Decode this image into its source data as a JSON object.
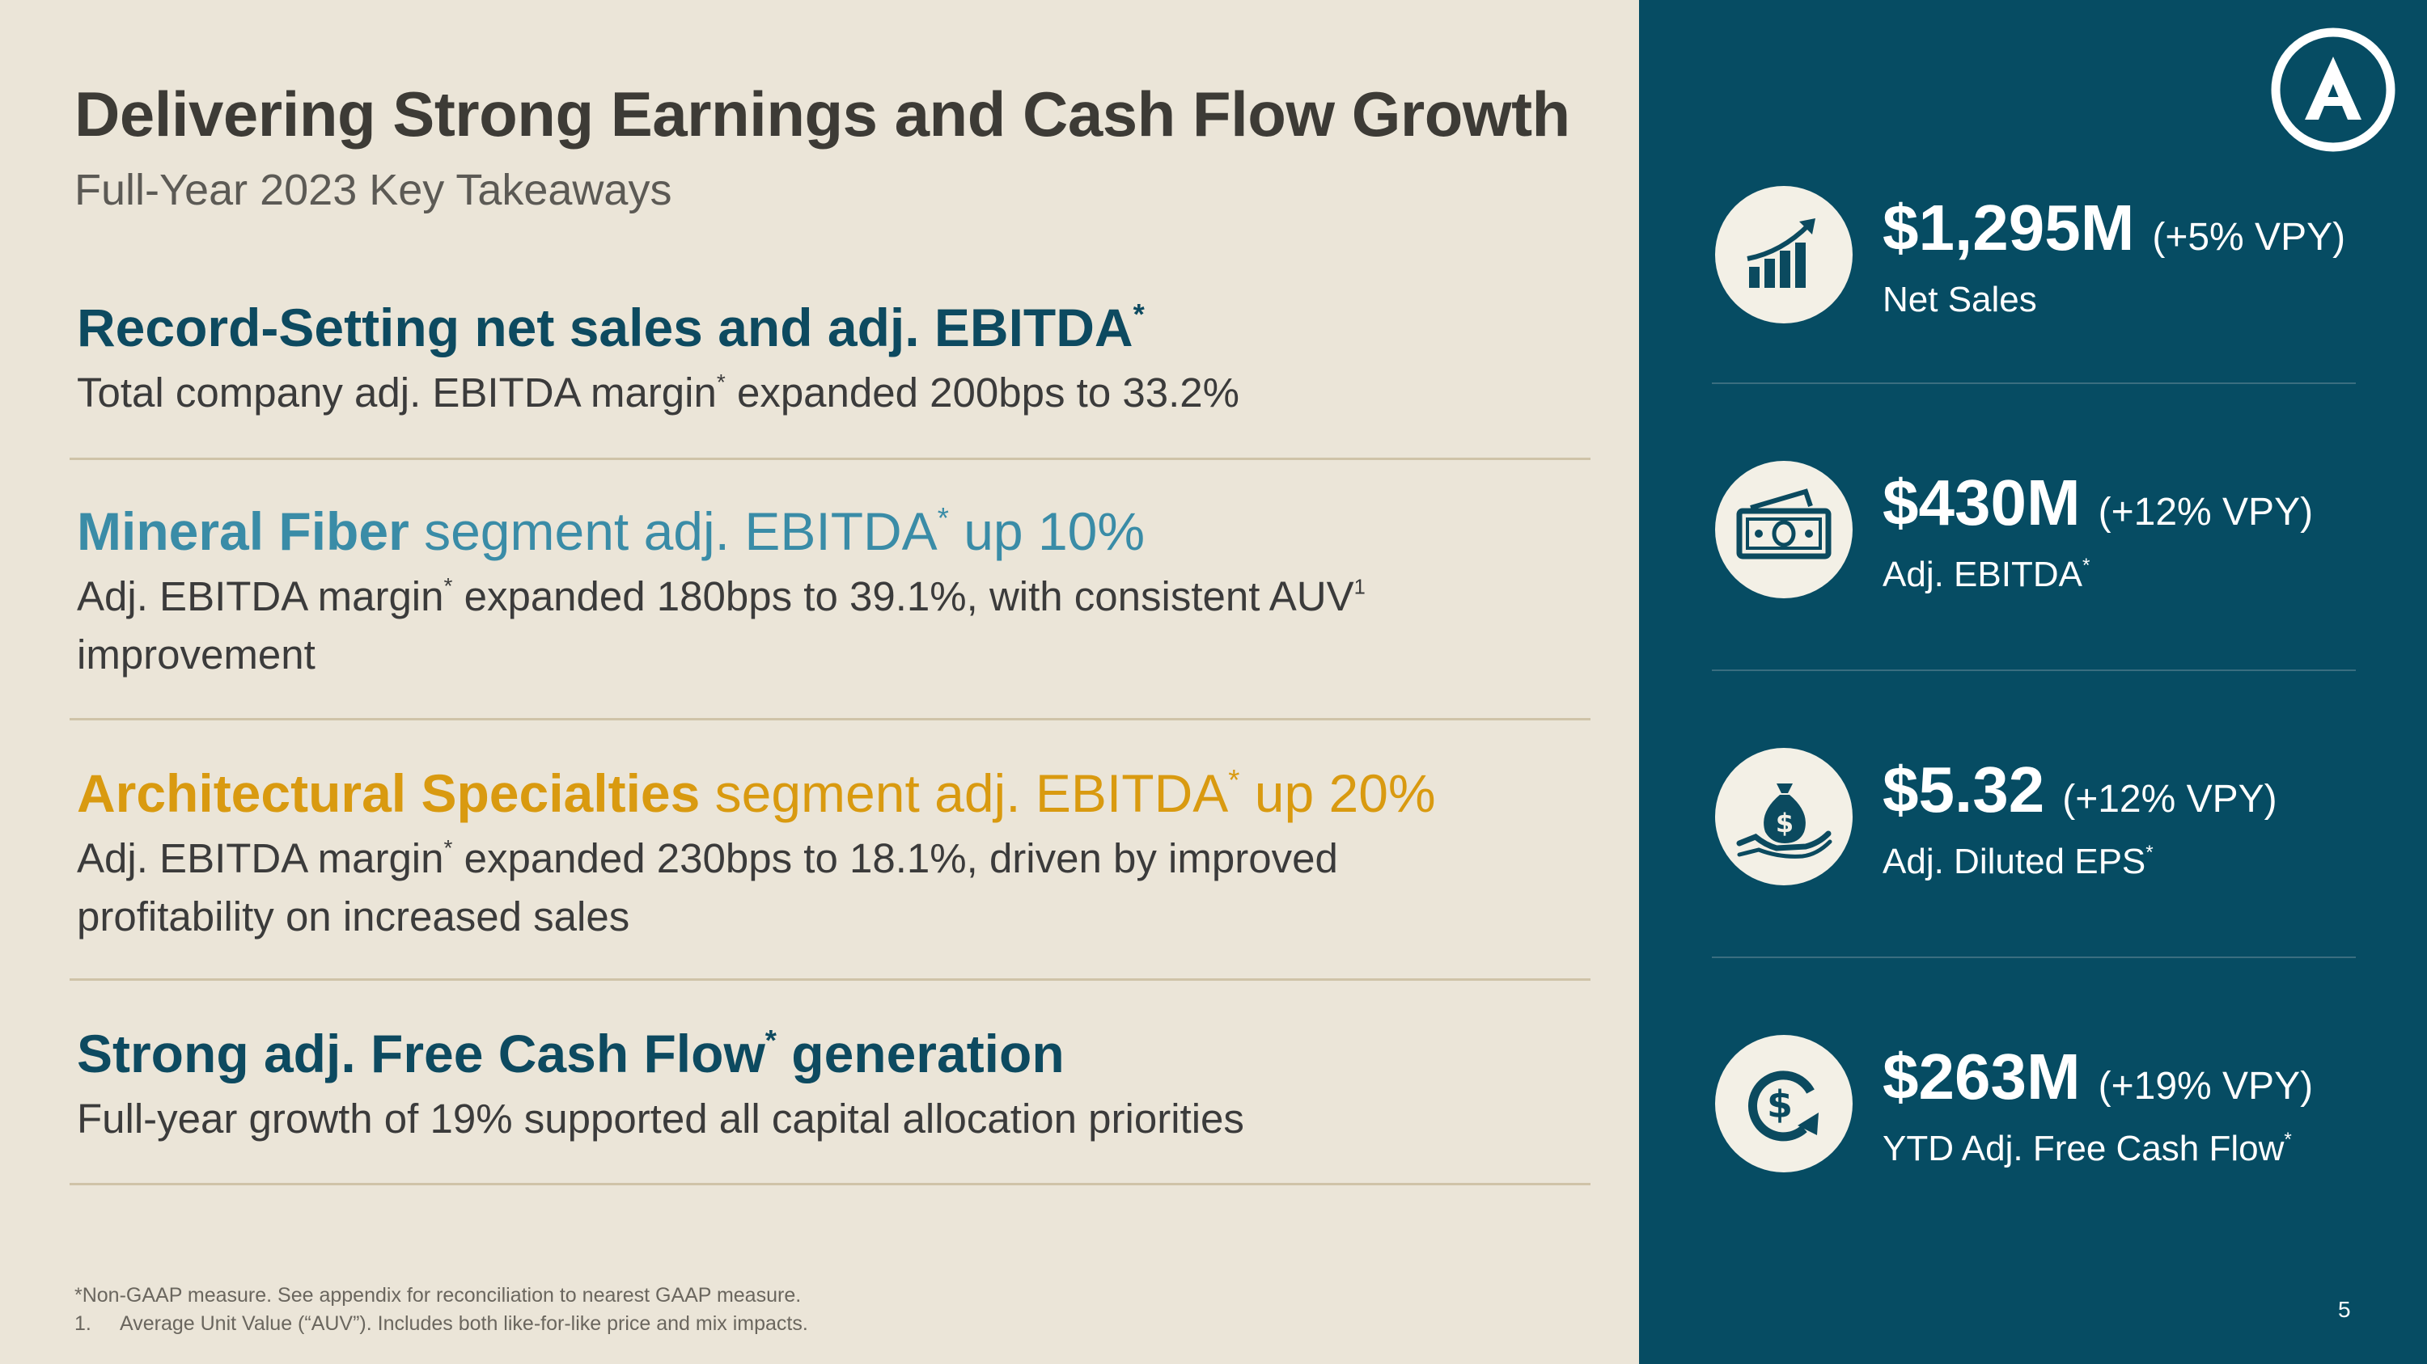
{
  "header": {
    "title": "Delivering Strong Earnings and Cash Flow Growth",
    "subtitle": "Full-Year 2023 Key Takeaways"
  },
  "sections": [
    {
      "head_bold": "Record-Setting net sales and adj. EBITDA",
      "head_sup": "*",
      "body_a": "Total company adj. EBITDA margin",
      "body_sup": "*",
      "body_b": " expanded 200bps to 33.2%"
    },
    {
      "head_bold": "Mineral Fiber",
      "head_rest": " segment adj. EBITDA",
      "head_sup": "*",
      "head_tail": " up 10%",
      "body_a": "Adj. EBITDA margin",
      "body_sup": "*",
      "body_b": " expanded 180bps to 39.1%, with consistent AUV",
      "body_sup2": "1",
      "body_c": "improvement"
    },
    {
      "head_bold": "Architectural Specialties",
      "head_rest": " segment adj. EBITDA",
      "head_sup": "*",
      "head_tail": " up 20%",
      "body_a": "Adj. EBITDA margin",
      "body_sup": "*",
      "body_b": " expanded 230bps to 18.1%, driven by improved",
      "body_c": "profitability on increased sales"
    },
    {
      "head_a": "Strong adj. Free Cash Flow",
      "head_sup": "*",
      "head_tail": " generation",
      "body_a": "Full-year growth of 19% supported all capital allocation priorities"
    }
  ],
  "footnotes": {
    "line1": "*Non-GAAP measure. See appendix for reconciliation to nearest GAAP measure.",
    "line2_num": "1.",
    "line2_text": "Average Unit Value (“AUV”). Includes both like-for-like price and mix impacts."
  },
  "stats": [
    {
      "icon": "growth-chart-icon",
      "value": "$1,295M",
      "change": "(+5% VPY)",
      "label": "Net Sales",
      "label_sup": ""
    },
    {
      "icon": "cash-bills-icon",
      "value": "$430M",
      "change": "(+12% VPY)",
      "label": "Adj. EBITDA",
      "label_sup": "*"
    },
    {
      "icon": "money-bag-hand-icon",
      "value": "$5.32",
      "change": "(+12% VPY)",
      "label": "Adj. Diluted EPS",
      "label_sup": "*"
    },
    {
      "icon": "dollar-cycle-icon",
      "value": "$263M",
      "change": "(+19% VPY)",
      "label": "YTD Adj. Free Cash Flow",
      "label_sup": "*"
    }
  ],
  "page_number": "5",
  "colors": {
    "background": "#ebe5d8",
    "panel": "#064c63",
    "dark_teal": "#0d4a60",
    "light_teal": "#3a8ca7",
    "gold": "#d99a10"
  }
}
